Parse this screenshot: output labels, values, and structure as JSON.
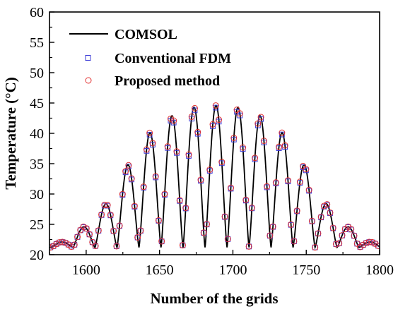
{
  "chart_data": {
    "type": "line",
    "xlabel": "Number of the grids",
    "ylabel": "Temperature (°C)",
    "xlim": [
      1575,
      1800
    ],
    "ylim": [
      20,
      60
    ],
    "xticks": [
      1600,
      1650,
      1700,
      1750,
      1800
    ],
    "yticks": [
      20,
      25,
      30,
      35,
      40,
      45,
      50,
      55,
      60
    ],
    "legend_position": "top-left",
    "grid": false,
    "marker_spacing": 2.05,
    "peaks": [
      {
        "x": 1583.5,
        "y": 22.1
      },
      {
        "x": 1598.5,
        "y": 24.6
      },
      {
        "x": 1613.5,
        "y": 28.4
      },
      {
        "x": 1628.5,
        "y": 34.8
      },
      {
        "x": 1643.5,
        "y": 40.1
      },
      {
        "x": 1658.5,
        "y": 42.9
      },
      {
        "x": 1673.5,
        "y": 44.3
      },
      {
        "x": 1688.5,
        "y": 44.6
      },
      {
        "x": 1703.5,
        "y": 44.3
      },
      {
        "x": 1718.5,
        "y": 42.9
      },
      {
        "x": 1733.5,
        "y": 40.1
      },
      {
        "x": 1748.5,
        "y": 34.8
      },
      {
        "x": 1763.5,
        "y": 28.4
      },
      {
        "x": 1778.5,
        "y": 24.6
      },
      {
        "x": 1793.5,
        "y": 22.1
      }
    ],
    "baseline": 21.2,
    "fdm_peak_scale": 0.985,
    "series": [
      {
        "name": "COMSOL",
        "style": "line",
        "color": "#000000"
      },
      {
        "name": "Conventional FDM",
        "style": "square-marker",
        "color": "#3b3bd6"
      },
      {
        "name": "Proposed method",
        "style": "circle-marker",
        "color": "#e23030"
      }
    ]
  }
}
